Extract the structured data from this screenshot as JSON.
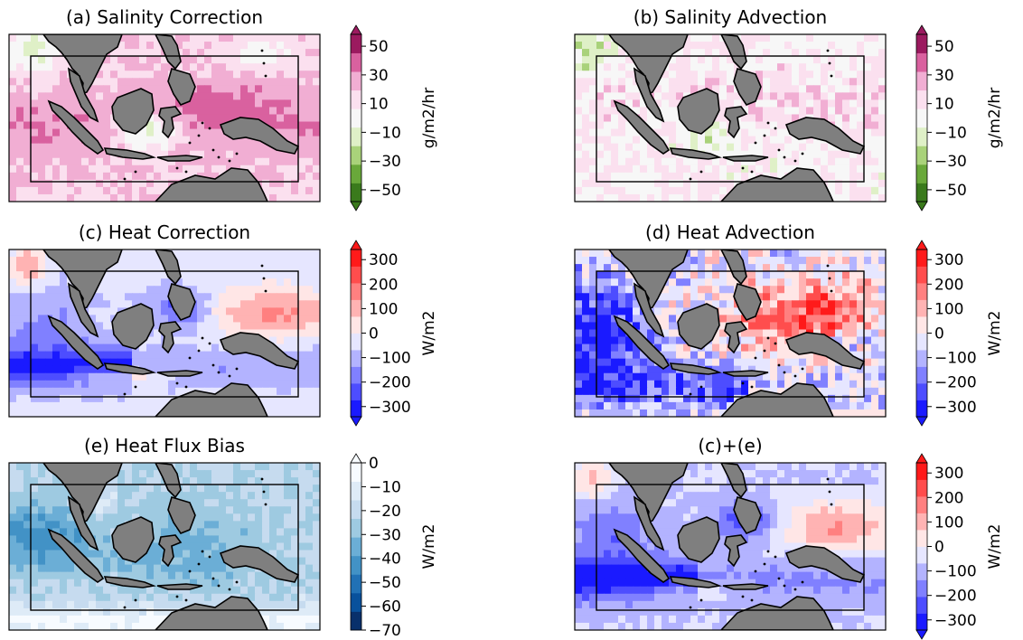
{
  "chart_data": [
    {
      "type": "heatmap",
      "title": "(a) Salinity Correction",
      "colorbar": {
        "label": "g/m2/hr",
        "ticks": [
          "50",
          "30",
          "10",
          "−10",
          "−30",
          "−50"
        ],
        "vmin": -50,
        "vmax": 50,
        "palette": "PiYG",
        "extend": "both"
      },
      "pattern": "a"
    },
    {
      "type": "heatmap",
      "title": "(b) Salinity Advection",
      "colorbar": {
        "label": "g/m2/hr",
        "ticks": [
          "50",
          "30",
          "10",
          "−10",
          "−30",
          "−50"
        ],
        "vmin": -50,
        "vmax": 50,
        "palette": "PiYG",
        "extend": "both"
      },
      "pattern": "b"
    },
    {
      "type": "heatmap",
      "title": "(c) Heat Correction",
      "colorbar": {
        "label": "W/m2",
        "ticks": [
          "300",
          "200",
          "100",
          "0",
          "−100",
          "−200",
          "−300"
        ],
        "vmin": -300,
        "vmax": 300,
        "palette": "bwr",
        "extend": "both"
      },
      "pattern": "c"
    },
    {
      "type": "heatmap",
      "title": "(d) Heat Advection",
      "colorbar": {
        "label": "W/m2",
        "ticks": [
          "300",
          "200",
          "100",
          "0",
          "−100",
          "−200",
          "−300"
        ],
        "vmin": -300,
        "vmax": 300,
        "palette": "bwr",
        "extend": "both"
      },
      "pattern": "d"
    },
    {
      "type": "heatmap",
      "title": "(e) Heat Flux Bias",
      "colorbar": {
        "label": "W/m2",
        "ticks": [
          "0",
          "−10",
          "−20",
          "−30",
          "−40",
          "−50",
          "−60",
          "−70"
        ],
        "vmin": -70,
        "vmax": 0,
        "palette": "Blues",
        "extend": "max"
      },
      "pattern": "e"
    },
    {
      "type": "heatmap",
      "title": "(c)+(e)",
      "colorbar": {
        "label": "W/m2",
        "ticks": [
          "300",
          "200",
          "100",
          "0",
          "−100",
          "−200",
          "−300"
        ],
        "vmin": -300,
        "vmax": 300,
        "palette": "bwr",
        "extend": "both"
      },
      "pattern": "f"
    }
  ],
  "colors": {
    "land": "#7f7f7f",
    "coast": "#000000",
    "piyg": [
      "#3a7a1c",
      "#69a83a",
      "#a9d27a",
      "#dff0c7",
      "#f7f7f7",
      "#fbe0ef",
      "#f1aed3",
      "#d9619f",
      "#9b1a5f"
    ],
    "bwr": [
      "#1a1aff",
      "#4d4dff",
      "#8080ff",
      "#b3b3ff",
      "#e6e6ff",
      "#ffe6e6",
      "#ffb3b3",
      "#ff8080",
      "#ff4d4d",
      "#ff1a1a"
    ],
    "blues": [
      "#08306b",
      "#08519c",
      "#2171b5",
      "#4292c6",
      "#6baed6",
      "#9ecae1",
      "#c6dbef",
      "#deebf7",
      "#f7fbff"
    ]
  }
}
